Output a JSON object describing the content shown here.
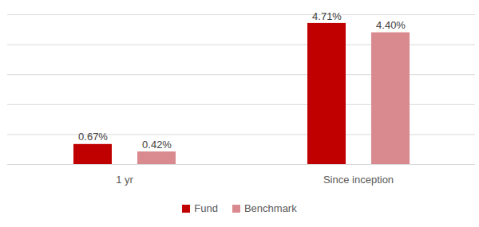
{
  "chart_data": {
    "type": "bar",
    "categories": [
      "1 yr",
      "Since inception"
    ],
    "series": [
      {
        "name": "Fund",
        "color": "#c00000",
        "values": [
          0.67,
          4.71
        ],
        "value_labels": [
          "0.67%",
          "4.71%"
        ]
      },
      {
        "name": "Benchmark",
        "color": "#d98a8e",
        "values": [
          0.42,
          4.4
        ],
        "value_labels": [
          "0.42%",
          "4.40%"
        ]
      }
    ],
    "ylim": [
      0,
      5
    ],
    "yticks": [
      0,
      1,
      2,
      3,
      4,
      5
    ],
    "grid": true,
    "tick_labels": "x",
    "data_labels": true,
    "legend": "bottom"
  }
}
